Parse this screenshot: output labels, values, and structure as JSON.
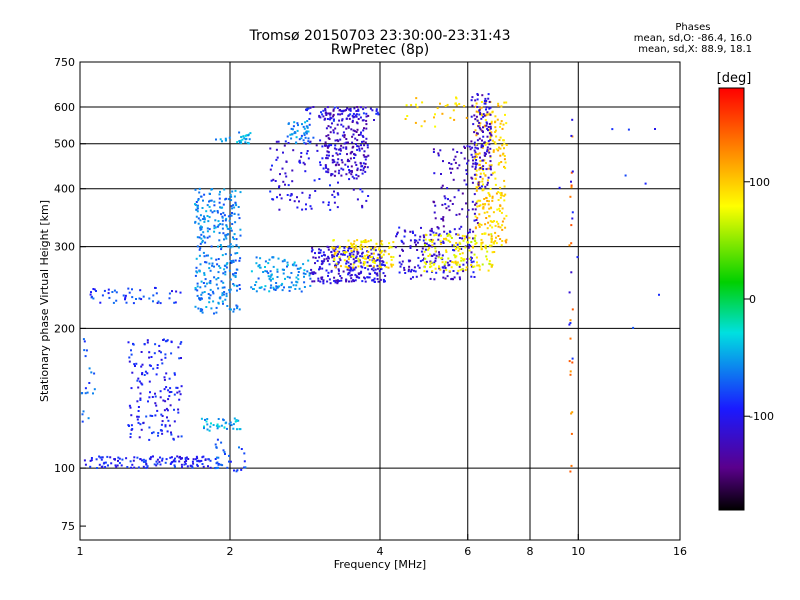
{
  "header": {
    "title_line1": "Tromsø 20150703 23:30:00-23:31:43",
    "title_line2": "RwPretec (8p)"
  },
  "phase_stats": {
    "heading": "Phases",
    "line_o": "mean, sd,O: -86.4, 16.0",
    "line_x": "mean, sd,X:  88.9, 18.1"
  },
  "colorbar": {
    "unit_label": "[deg]",
    "min": -180,
    "max": 180,
    "ticks": [
      100,
      0,
      -100
    ],
    "tick_labels": [
      "100",
      "0",
      "-100"
    ]
  },
  "chart_data": {
    "type": "scatter",
    "title": "Tromsø 20150703 23:30:00-23:31:43",
    "subtitle": "RwPretec (8p)",
    "xlabel": "Frequency [MHz]",
    "ylabel": "Stationary phase Virtual Height [km]",
    "xscale": "log",
    "yscale": "log",
    "xlim": [
      1,
      16
    ],
    "ylim": [
      70,
      750
    ],
    "xticks": [
      1,
      2,
      4,
      6,
      8,
      10,
      16
    ],
    "xtick_labels": [
      "1",
      "2",
      "4",
      "6",
      "8",
      "10",
      "16"
    ],
    "xgrid": [
      2,
      4,
      6,
      8,
      10
    ],
    "yticks": [
      75,
      100,
      200,
      300,
      400,
      500,
      600,
      750
    ],
    "ytick_labels": [
      "75",
      "100",
      "200",
      "300",
      "400",
      "500",
      "600",
      "750"
    ],
    "ygrid": [
      100,
      200,
      300,
      400,
      500,
      600
    ],
    "color_by": "phase [deg]",
    "clusters": [
      {
        "f0": 1.02,
        "f1": 1.9,
        "h0": 100,
        "h1": 106,
        "phase": -95,
        "n": 140
      },
      {
        "f0": 1.0,
        "f1": 1.08,
        "h0": 125,
        "h1": 190,
        "phase": -70,
        "n": 20
      },
      {
        "f0": 1.25,
        "f1": 1.6,
        "h0": 115,
        "h1": 190,
        "phase": -95,
        "n": 160
      },
      {
        "f0": 1.75,
        "f1": 2.1,
        "h0": 120,
        "h1": 128,
        "phase": -45,
        "n": 40
      },
      {
        "f0": 1.85,
        "f1": 2.15,
        "h0": 98,
        "h1": 118,
        "phase": -75,
        "n": 30
      },
      {
        "f0": 1.05,
        "f1": 1.6,
        "h0": 225,
        "h1": 245,
        "phase": -85,
        "n": 50
      },
      {
        "f0": 1.7,
        "f1": 2.1,
        "h0": 215,
        "h1": 400,
        "phase": -60,
        "n": 320
      },
      {
        "f0": 1.85,
        "f1": 2.2,
        "h0": 500,
        "h1": 530,
        "phase": -50,
        "n": 30
      },
      {
        "f0": 2.6,
        "f1": 2.95,
        "h0": 500,
        "h1": 560,
        "phase": -60,
        "n": 45
      },
      {
        "f0": 2.2,
        "f1": 2.9,
        "h0": 240,
        "h1": 285,
        "phase": -55,
        "n": 110
      },
      {
        "f0": 2.9,
        "f1": 4.1,
        "h0": 250,
        "h1": 300,
        "phase": -110,
        "n": 260
      },
      {
        "f0": 2.4,
        "f1": 3.8,
        "h0": 360,
        "h1": 510,
        "phase": -105,
        "n": 120
      },
      {
        "f0": 3.1,
        "f1": 3.8,
        "h0": 420,
        "h1": 600,
        "phase": -120,
        "n": 200
      },
      {
        "f0": 2.8,
        "f1": 4.0,
        "h0": 560,
        "h1": 600,
        "phase": -100,
        "n": 60
      },
      {
        "f0": 3.2,
        "f1": 4.3,
        "h0": 270,
        "h1": 310,
        "phase": 90,
        "n": 120
      },
      {
        "f0": 4.3,
        "f1": 6.2,
        "h0": 255,
        "h1": 330,
        "phase": -110,
        "n": 180
      },
      {
        "f0": 5.1,
        "f1": 6.3,
        "h0": 330,
        "h1": 500,
        "phase": -120,
        "n": 90
      },
      {
        "f0": 4.9,
        "f1": 6.8,
        "h0": 265,
        "h1": 320,
        "phase": 80,
        "n": 150
      },
      {
        "f0": 6.2,
        "f1": 7.2,
        "h0": 300,
        "h1": 620,
        "phase": 100,
        "n": 250
      },
      {
        "f0": 6.1,
        "f1": 6.7,
        "h0": 400,
        "h1": 640,
        "phase": -115,
        "n": 120
      },
      {
        "f0": 4.5,
        "f1": 6.0,
        "h0": 540,
        "h1": 630,
        "phase": 95,
        "n": 30
      },
      {
        "f0": 9.6,
        "f1": 9.75,
        "h0": 90,
        "h1": 560,
        "phase": 130,
        "n": 20
      },
      {
        "f0": 9.6,
        "f1": 9.75,
        "h0": 160,
        "h1": 580,
        "phase": -100,
        "n": 10
      },
      {
        "f0": 8.2,
        "f1": 15.5,
        "h0": 150,
        "h1": 600,
        "phase": -90,
        "n": 10
      }
    ]
  }
}
